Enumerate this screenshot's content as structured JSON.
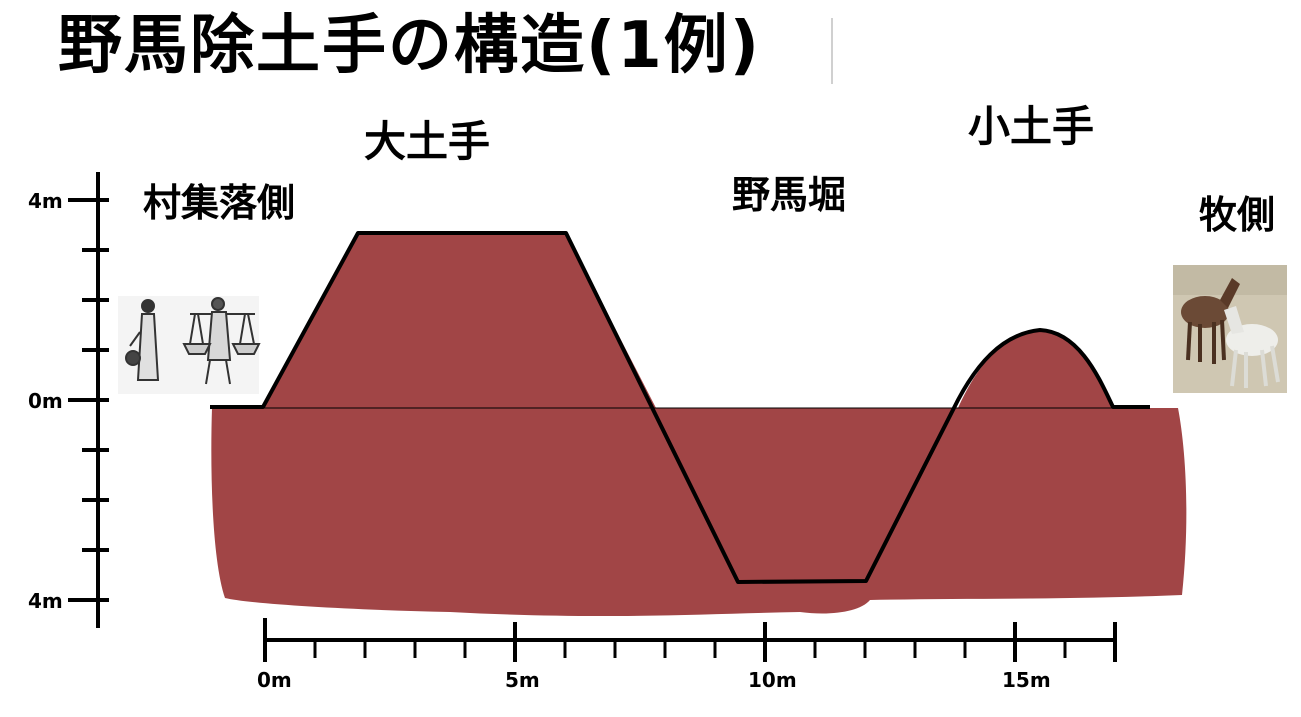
{
  "title": "野馬除土手の構造(1例)",
  "labels": {
    "village_side": "村集落側",
    "large_bank": "大土手",
    "moat": "野馬堀",
    "small_bank": "小土手",
    "pasture_side": "牧側"
  },
  "y_axis": {
    "ticks": [
      "4m",
      "0m",
      "4m"
    ]
  },
  "x_axis": {
    "ticks": [
      "0m",
      "5m",
      "10m",
      "15m"
    ]
  },
  "profile": {
    "unit": "m",
    "ground_level": 0,
    "points": [
      [
        0,
        0
      ],
      [
        1.9,
        3.4
      ],
      [
        6,
        3.4
      ],
      [
        9.4,
        -3.5
      ],
      [
        12,
        -3.5
      ],
      [
        13.9,
        0.5
      ],
      [
        15.6,
        1.4
      ],
      [
        17,
        0
      ]
    ]
  },
  "images": {
    "villagers": "villagers-illustration",
    "horses": "horses-painting"
  },
  "colors": {
    "earth": "#a14546",
    "ink": "#000000"
  }
}
